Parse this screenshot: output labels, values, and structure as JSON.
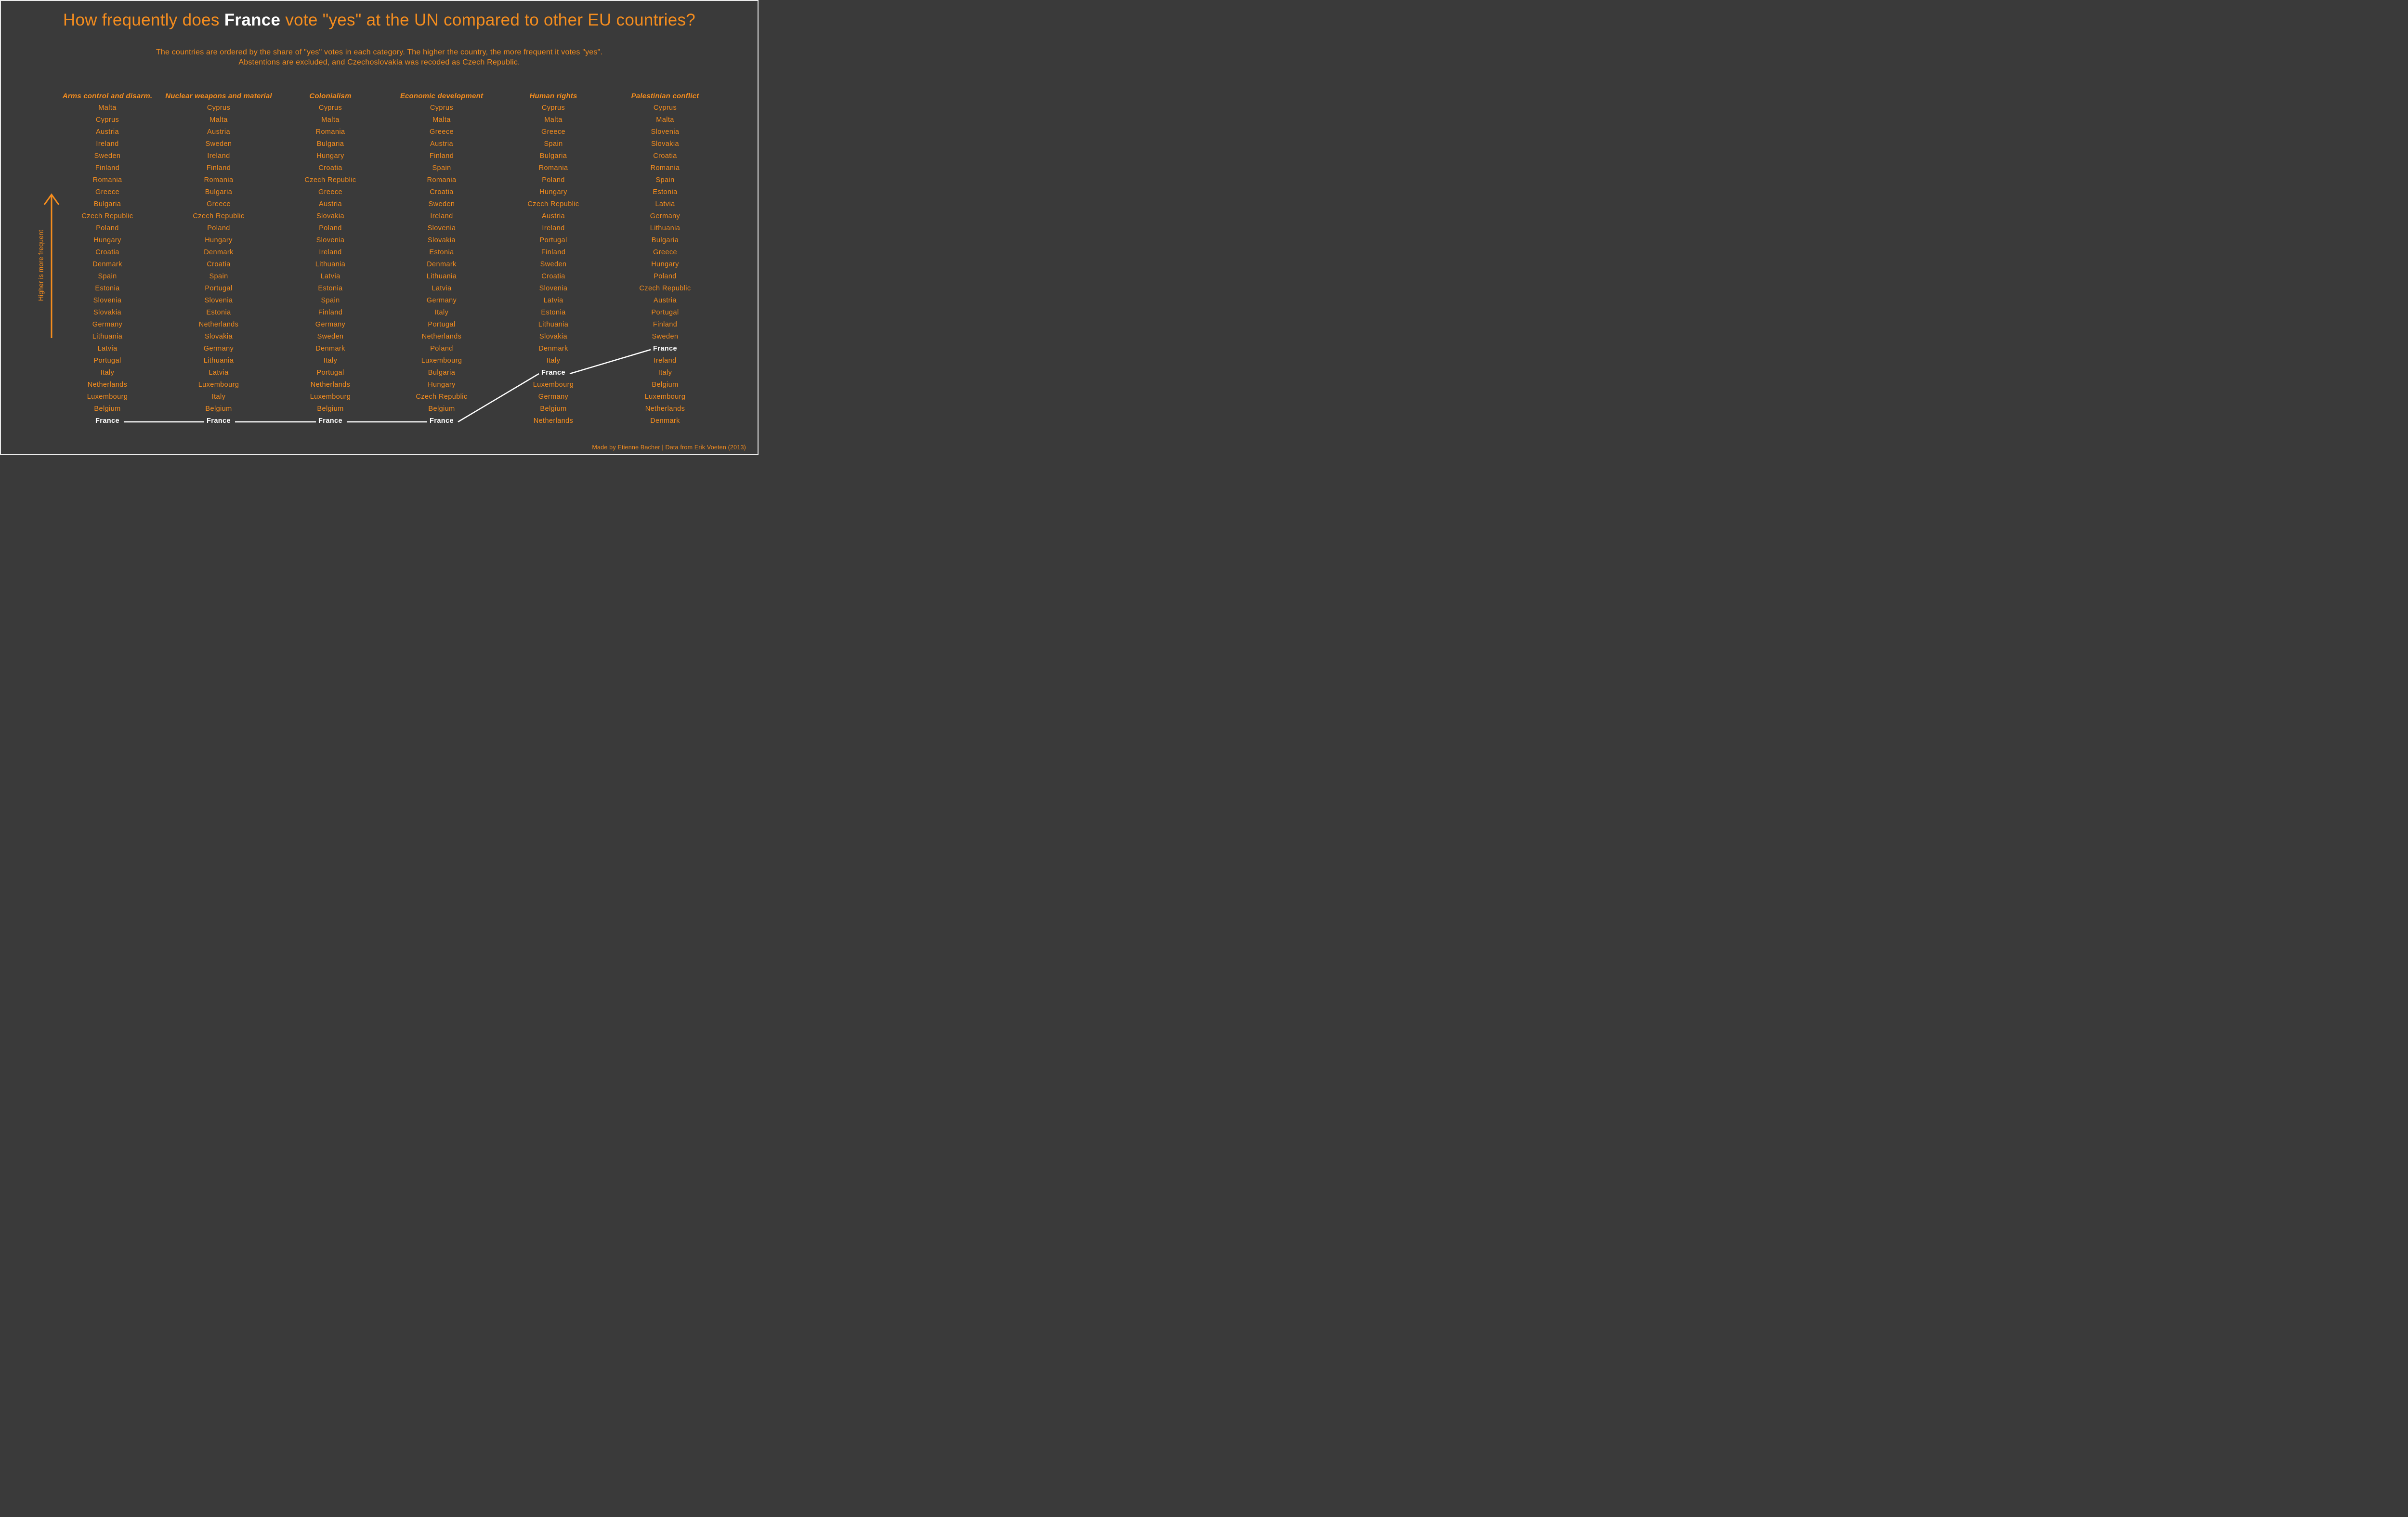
{
  "title": {
    "text_before": "How frequently does ",
    "highlight": "France",
    "text_after": " vote \"yes\" at the UN compared to other EU countries?"
  },
  "subtitle": {
    "line1": "The countries are ordered by the share of \"yes\" votes in each category. The higher the country, the more frequent it votes \"yes\".",
    "line2": "Abstentions are excluded, and Czechoslovakia was recoded as Czech Republic."
  },
  "y_axis_note": "Higher is more frequent",
  "credit": "Made by Etienne Bacher | Data from Erik Voeten (2013)",
  "highlight_country": "France",
  "colors": {
    "background": "#3A3A3A",
    "accent": "#F58D1E",
    "highlight": "#FFFFFF",
    "connector": "#FFFFFF"
  },
  "chart_data": {
    "type": "table",
    "note": "Ranked lists (bump-style). Each column orders EU countries from highest to lowest share of yes votes at the UN; France is highlighted and connected across columns.",
    "columns": [
      {
        "label": "Arms control and disarm.",
        "ranking": [
          "Malta",
          "Cyprus",
          "Austria",
          "Ireland",
          "Sweden",
          "Finland",
          "Romania",
          "Greece",
          "Bulgaria",
          "Czech Republic",
          "Poland",
          "Hungary",
          "Croatia",
          "Denmark",
          "Spain",
          "Estonia",
          "Slovenia",
          "Slovakia",
          "Germany",
          "Lithuania",
          "Latvia",
          "Portugal",
          "Italy",
          "Netherlands",
          "Luxembourg",
          "Belgium",
          "France"
        ]
      },
      {
        "label": "Nuclear weapons and material",
        "ranking": [
          "Cyprus",
          "Malta",
          "Austria",
          "Sweden",
          "Ireland",
          "Finland",
          "Romania",
          "Bulgaria",
          "Greece",
          "Czech Republic",
          "Poland",
          "Hungary",
          "Denmark",
          "Croatia",
          "Spain",
          "Portugal",
          "Slovenia",
          "Estonia",
          "Netherlands",
          "Slovakia",
          "Germany",
          "Lithuania",
          "Latvia",
          "Luxembourg",
          "Italy",
          "Belgium",
          "France"
        ]
      },
      {
        "label": "Colonialism",
        "ranking": [
          "Cyprus",
          "Malta",
          "Romania",
          "Bulgaria",
          "Hungary",
          "Croatia",
          "Czech Republic",
          "Greece",
          "Austria",
          "Slovakia",
          "Poland",
          "Slovenia",
          "Ireland",
          "Lithuania",
          "Latvia",
          "Estonia",
          "Spain",
          "Finland",
          "Germany",
          "Sweden",
          "Denmark",
          "Italy",
          "Portugal",
          "Netherlands",
          "Luxembourg",
          "Belgium",
          "France"
        ]
      },
      {
        "label": "Economic development",
        "ranking": [
          "Cyprus",
          "Malta",
          "Greece",
          "Austria",
          "Finland",
          "Spain",
          "Romania",
          "Croatia",
          "Sweden",
          "Ireland",
          "Slovenia",
          "Slovakia",
          "Estonia",
          "Denmark",
          "Lithuania",
          "Latvia",
          "Germany",
          "Italy",
          "Portugal",
          "Netherlands",
          "Poland",
          "Luxembourg",
          "Bulgaria",
          "Hungary",
          "Czech Republic",
          "Belgium",
          "France"
        ]
      },
      {
        "label": "Human rights",
        "ranking": [
          "Cyprus",
          "Malta",
          "Greece",
          "Spain",
          "Bulgaria",
          "Romania",
          "Poland",
          "Hungary",
          "Czech Republic",
          "Austria",
          "Ireland",
          "Portugal",
          "Finland",
          "Sweden",
          "Croatia",
          "Slovenia",
          "Latvia",
          "Estonia",
          "Lithuania",
          "Slovakia",
          "Denmark",
          "Italy",
          "France",
          "Luxembourg",
          "Germany",
          "Belgium",
          "Netherlands"
        ]
      },
      {
        "label": "Palestinian conflict",
        "ranking": [
          "Cyprus",
          "Malta",
          "Slovenia",
          "Slovakia",
          "Croatia",
          "Romania",
          "Spain",
          "Estonia",
          "Latvia",
          "Germany",
          "Lithuania",
          "Bulgaria",
          "Greece",
          "Hungary",
          "Poland",
          "Czech Republic",
          "Austria",
          "Portugal",
          "Finland",
          "Sweden",
          "France",
          "Ireland",
          "Italy",
          "Belgium",
          "Luxembourg",
          "Netherlands",
          "Denmark"
        ]
      }
    ],
    "france_rank_by_column": [
      27,
      27,
      27,
      27,
      23,
      21
    ],
    "legend_position": "none",
    "grid": false
  }
}
